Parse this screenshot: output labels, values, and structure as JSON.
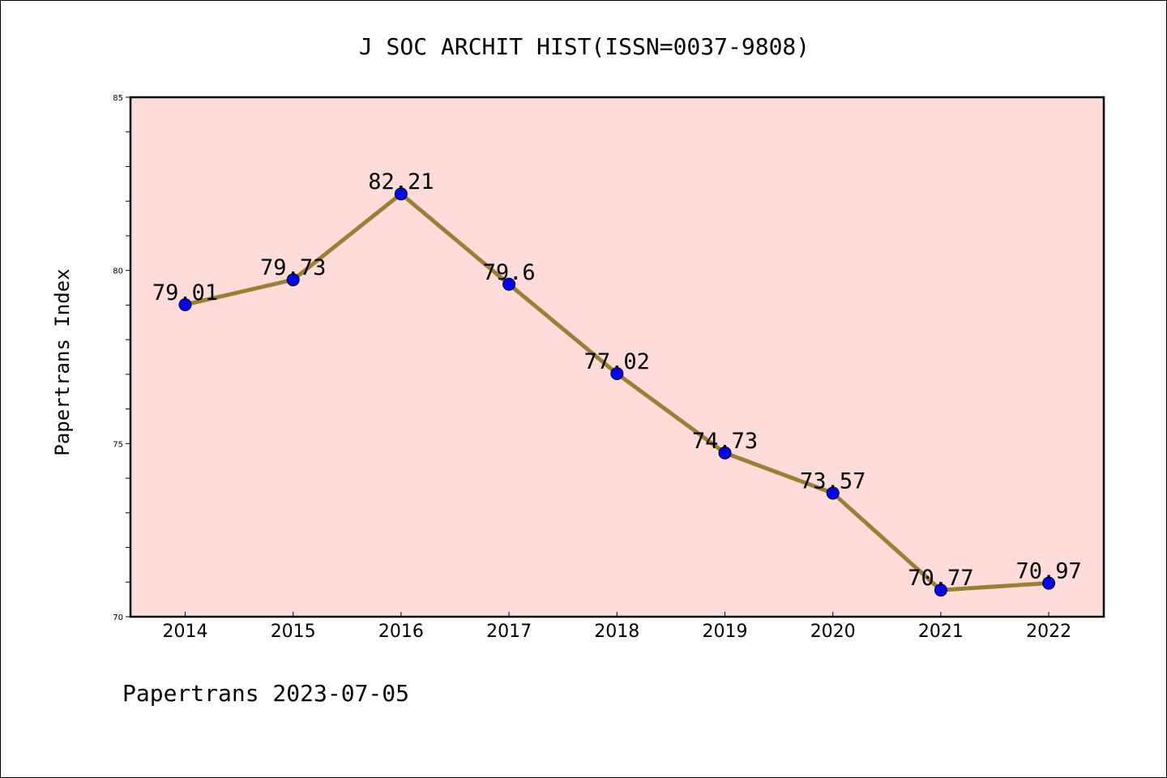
{
  "chart_data": {
    "type": "line",
    "title": "J SOC ARCHIT HIST(ISSN=0037-9808)",
    "xlabel": "",
    "ylabel": "Papertrans Index",
    "categories": [
      "2014",
      "2015",
      "2016",
      "2017",
      "2018",
      "2019",
      "2020",
      "2021",
      "2022"
    ],
    "series": [
      {
        "values": [
          79.01,
          79.73,
          82.21,
          79.6,
          77.02,
          74.73,
          73.57,
          70.77,
          70.97
        ],
        "labels": [
          "79.01",
          "79.73",
          "82.21",
          "79.6",
          "77.02",
          "74.73",
          "73.57",
          "70.77",
          "70.97"
        ],
        "line_color": "#9a8035",
        "marker_color": "#0000ff"
      }
    ],
    "ylim": [
      70,
      85
    ],
    "yticks": [
      "70",
      "75",
      "80",
      "85"
    ],
    "plot_background": "#fddcd9",
    "grid": false,
    "footer": "Papertrans 2023-07-05"
  }
}
